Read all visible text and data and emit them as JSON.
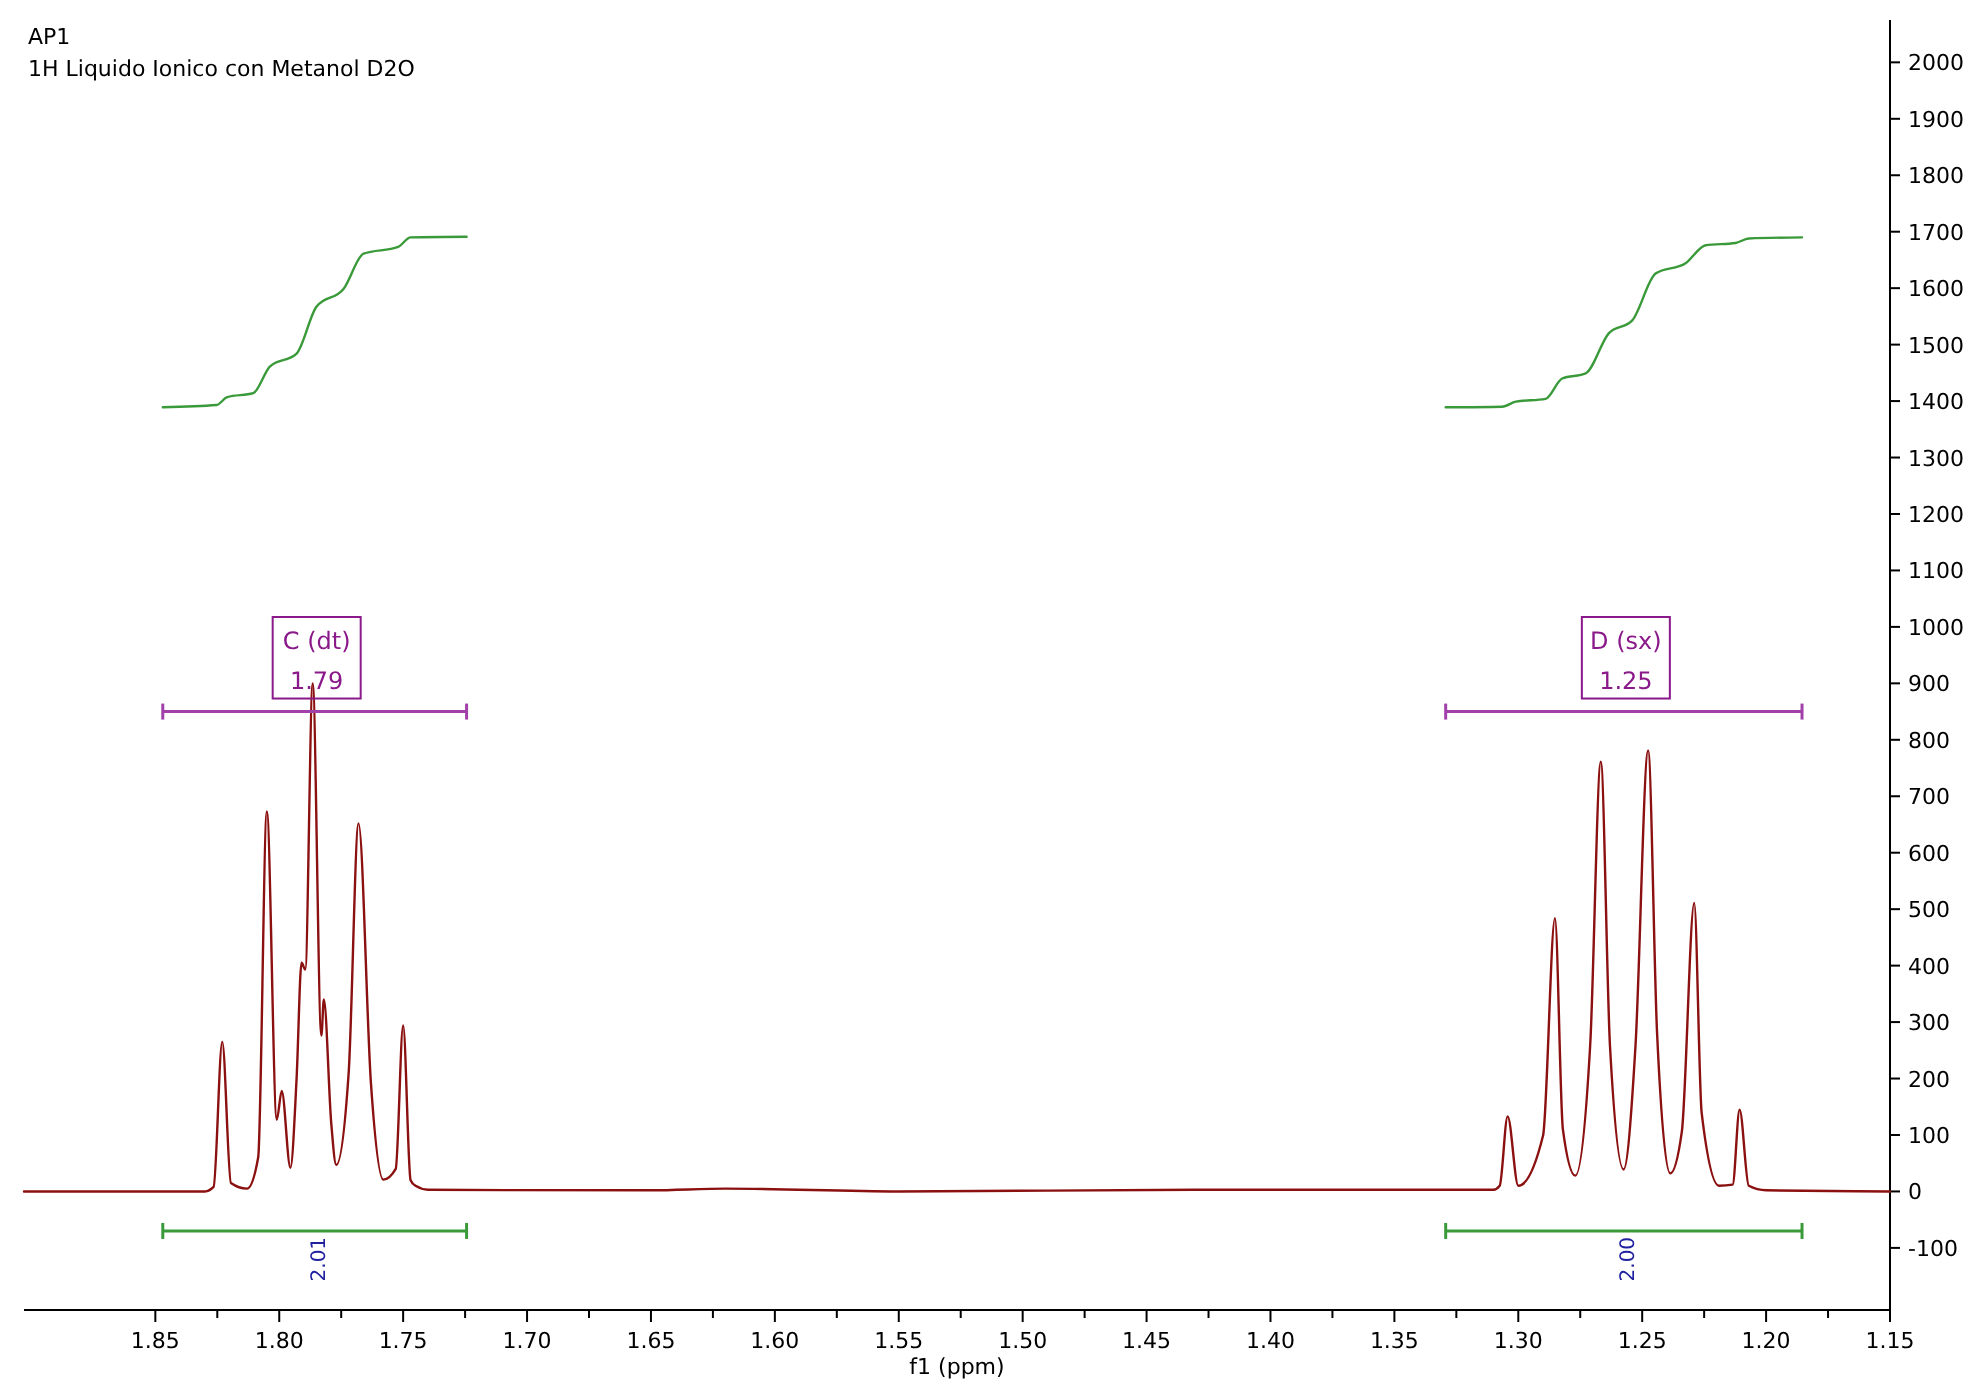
{
  "chart_data": {
    "type": "line",
    "title": "AP1",
    "subtitle": "1H  Liquido Ionico con Metanol D2O",
    "xlabel": "f1 (ppm)",
    "xlim": [
      1.903,
      1.15
    ],
    "ylim": [
      -210,
      2075
    ],
    "xticks": [
      {
        "value": 1.85,
        "label": "1.85"
      },
      {
        "value": 1.825,
        "label": null
      },
      {
        "value": 1.8,
        "label": "1.80"
      },
      {
        "value": 1.775,
        "label": null
      },
      {
        "value": 1.75,
        "label": "1.75"
      },
      {
        "value": 1.725,
        "label": null
      },
      {
        "value": 1.7,
        "label": "1.70"
      },
      {
        "value": 1.675,
        "label": null
      },
      {
        "value": 1.65,
        "label": "1.65"
      },
      {
        "value": 1.625,
        "label": null
      },
      {
        "value": 1.6,
        "label": "1.60"
      },
      {
        "value": 1.575,
        "label": null
      },
      {
        "value": 1.55,
        "label": "1.55"
      },
      {
        "value": 1.525,
        "label": null
      },
      {
        "value": 1.5,
        "label": "1.50"
      },
      {
        "value": 1.475,
        "label": null
      },
      {
        "value": 1.45,
        "label": "1.45"
      },
      {
        "value": 1.425,
        "label": null
      },
      {
        "value": 1.4,
        "label": "1.40"
      },
      {
        "value": 1.375,
        "label": null
      },
      {
        "value": 1.35,
        "label": "1.35"
      },
      {
        "value": 1.325,
        "label": null
      },
      {
        "value": 1.3,
        "label": "1.30"
      },
      {
        "value": 1.275,
        "label": null
      },
      {
        "value": 1.25,
        "label": "1.25"
      },
      {
        "value": 1.225,
        "label": null
      },
      {
        "value": 1.2,
        "label": "1.20"
      },
      {
        "value": 1.175,
        "label": null
      },
      {
        "value": 1.15,
        "label": "1.15"
      }
    ],
    "yticks": [
      -100,
      0,
      100,
      200,
      300,
      400,
      500,
      600,
      700,
      800,
      900,
      1000,
      1100,
      1200,
      1300,
      1400,
      1500,
      1600,
      1700,
      1800,
      1900,
      2000
    ],
    "series": [
      {
        "color": "#8b1010",
        "x": [
          1.903,
          1.83,
          1.8265,
          1.823,
          1.8195,
          1.813,
          1.8085,
          1.805,
          1.801,
          1.799,
          1.7955,
          1.793,
          1.791,
          1.7895,
          1.7865,
          1.783,
          1.782,
          1.779,
          1.777,
          1.772,
          1.768,
          1.763,
          1.758,
          1.753,
          1.75,
          1.747,
          1.745,
          1.74,
          1.65,
          1.62,
          1.55,
          1.43,
          1.31,
          1.3075,
          1.3043,
          1.3,
          1.29,
          1.2852,
          1.282,
          1.277,
          1.271,
          1.2667,
          1.263,
          1.2575,
          1.2527,
          1.2476,
          1.244,
          1.2387,
          1.234,
          1.229,
          1.226,
          1.219,
          1.2135,
          1.2107,
          1.207,
          1.2,
          1.15
        ],
        "values": [
          0,
          0,
          8,
          265,
          15,
          5,
          60,
          673,
          127,
          178,
          42,
          200,
          405,
          393,
          900,
          276,
          340,
          120,
          47,
          209,
          652,
          192,
          21,
          40,
          294,
          20,
          10,
          3,
          2,
          5,
          0,
          3,
          3,
          10,
          133,
          10,
          99,
          484,
          110,
          28,
          258,
          761,
          258,
          39,
          258,
          781,
          281,
          32,
          106,
          511,
          139,
          10,
          12,
          145,
          10,
          2,
          0
        ]
      },
      {
        "color": "#3a9a3a",
        "x": [
          1.847,
          1.8253,
          1.821,
          1.8105,
          1.8038,
          1.793,
          1.785,
          1.774,
          1.766,
          1.752,
          1.747,
          1.7244
        ],
        "values": [
          1389,
          1393,
          1407,
          1414,
          1461,
          1484,
          1567,
          1599,
          1661,
          1673,
          1690,
          1691
        ]
      },
      {
        "color": "#3a9a3a",
        "x": [
          1.3293,
          1.3065,
          1.301,
          1.289,
          1.2823,
          1.2728,
          1.2635,
          1.254,
          1.2446,
          1.2325,
          1.2244,
          1.2123,
          1.207,
          1.1855
        ],
        "values": [
          1389,
          1390,
          1399,
          1404,
          1440,
          1449,
          1520,
          1543,
          1626,
          1644,
          1676,
          1680,
          1688,
          1690
        ]
      }
    ],
    "annotations": [
      "C (dt)",
      "1.79",
      "2.01",
      "D (sx)",
      "1.25",
      "2.00"
    ]
  }
}
